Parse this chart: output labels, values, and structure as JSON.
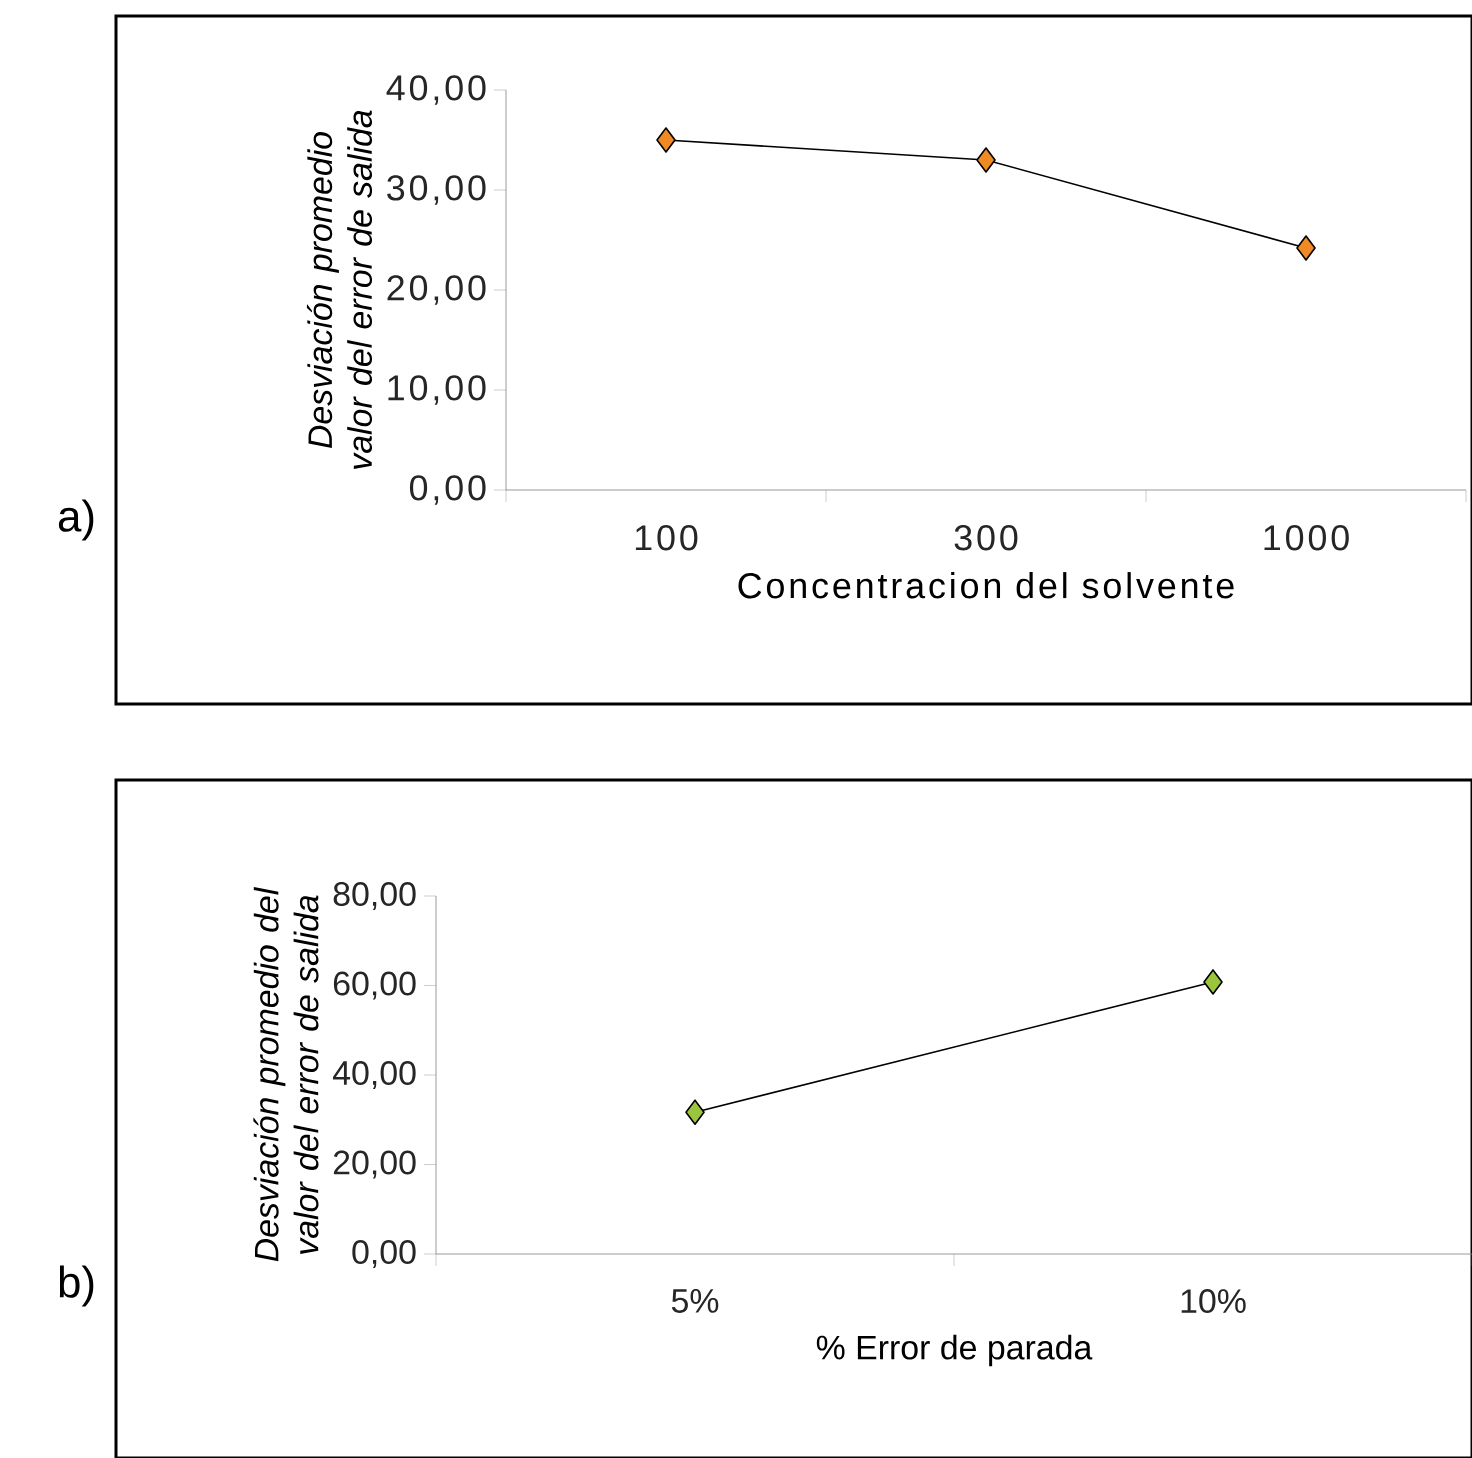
{
  "chart_data": [
    {
      "type": "line",
      "xlabel": "Concentracion del solvente",
      "ylabel": "Desviación promedio valor del error de salida",
      "annotations": [
        "a)"
      ],
      "categories": [
        "100",
        "300",
        "1000"
      ],
      "series": [
        {
          "color": "#f08a24",
          "values": [
            35,
            33,
            24.2
          ]
        }
      ],
      "marker": "diamond",
      "line_style": "solid",
      "grid": false,
      "ylim": [
        0,
        40
      ],
      "yticks": [
        {
          "value": 0,
          "label": "0,00"
        },
        {
          "value": 10,
          "label": "10,00"
        },
        {
          "value": 20,
          "label": "20,00"
        },
        {
          "value": 30,
          "label": "30,00"
        },
        {
          "value": 40,
          "label": "40,00"
        }
      ]
    },
    {
      "type": "line",
      "xlabel": "% Error de parada",
      "ylabel": "Desviación promedio del valor del error de salida",
      "annotations": [
        "b)"
      ],
      "categories": [
        "5%",
        "10%"
      ],
      "series": [
        {
          "color": "#9ac53c",
          "values": [
            31.7,
            60.8
          ]
        }
      ],
      "marker": "diamond",
      "line_style": "solid",
      "grid": false,
      "ylim": [
        0,
        80
      ],
      "yticks": [
        {
          "value": 0,
          "label": "0,00"
        },
        {
          "value": 20,
          "label": "20,00"
        },
        {
          "value": 40,
          "label": "40,00"
        },
        {
          "value": 60,
          "label": "60,00"
        },
        {
          "value": 80,
          "label": "80,00"
        }
      ]
    }
  ]
}
